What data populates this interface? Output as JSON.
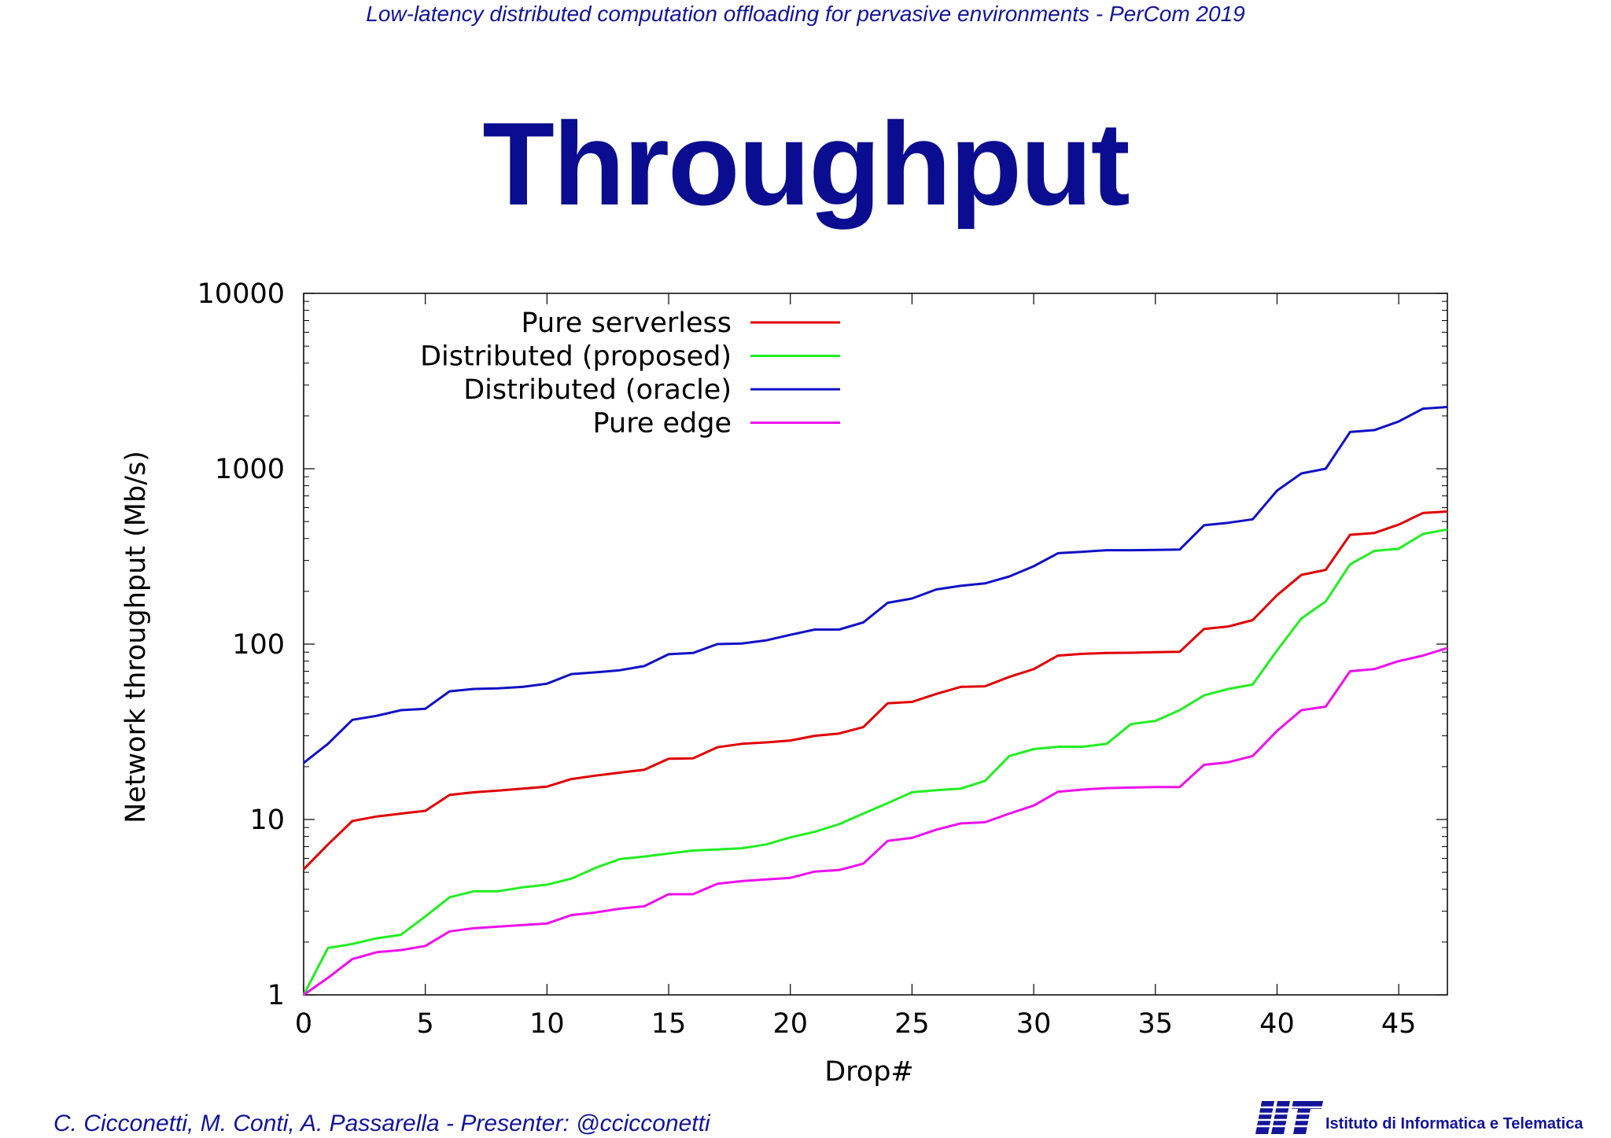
{
  "header": "Low-latency distributed computation offloading for pervasive environments  - PerCom 2019",
  "title": "Throughput",
  "footer": {
    "authors": "C. Cicconetti, M. Conti, A. Passarella - Presenter: @ccicconetti",
    "institute": "Istituto di Informatica e Telematica",
    "logo_letters": "IIT"
  },
  "colors": {
    "header_text": "#12149a",
    "title_text": "#0a0d8f",
    "pure_serverless": "#e00000",
    "distributed_proposed": "#22ee22",
    "distributed_oracle": "#1010c8",
    "pure_edge": "#ee10ee"
  },
  "chart_data": {
    "type": "line",
    "title": "",
    "xlabel": "Drop#",
    "ylabel": "Network throughput (Mb/s)",
    "yscale": "log",
    "xlim": [
      0,
      47
    ],
    "ylim": [
      1,
      10000
    ],
    "xticks": [
      0,
      5,
      10,
      15,
      20,
      25,
      30,
      35,
      40,
      45
    ],
    "yticks": [
      1,
      10,
      100,
      1000,
      10000
    ],
    "grid": false,
    "legend_position": "top-left",
    "x": [
      0,
      1,
      2,
      3,
      4,
      5,
      6,
      7,
      8,
      9,
      10,
      11,
      12,
      13,
      14,
      15,
      16,
      17,
      18,
      19,
      20,
      21,
      22,
      23,
      24,
      25,
      26,
      27,
      28,
      29,
      30,
      31,
      32,
      33,
      34,
      35,
      36,
      37,
      38,
      39,
      40,
      41,
      42,
      43,
      44,
      45,
      46,
      47
    ],
    "series": [
      {
        "name": "Pure serverless",
        "color": "#e00000",
        "values": [
          5.2,
          7.2,
          9.8,
          10.4,
          10.8,
          11.2,
          13.8,
          14.3,
          14.6,
          15,
          15.4,
          17,
          17.8,
          18.5,
          19.2,
          22.2,
          22.3,
          25.8,
          27,
          27.5,
          28.2,
          30,
          30.9,
          33.6,
          46,
          46.8,
          52,
          57,
          57.5,
          65,
          72,
          86,
          88,
          89,
          89.3,
          90,
          90.4,
          122,
          126,
          137,
          190,
          248,
          265,
          420,
          430,
          480,
          560,
          570
        ]
      },
      {
        "name": "Distributed (proposed)",
        "color": "#22ee22",
        "values": [
          1,
          1.85,
          1.95,
          2.1,
          2.2,
          2.8,
          3.6,
          3.9,
          3.9,
          4.1,
          4.25,
          4.6,
          5.3,
          5.95,
          6.15,
          6.4,
          6.65,
          6.75,
          6.85,
          7.2,
          7.9,
          8.5,
          9.4,
          10.8,
          12.4,
          14.3,
          14.7,
          15,
          16.6,
          23,
          25.2,
          26,
          26,
          27,
          35,
          36.5,
          42,
          51,
          55.5,
          58.8,
          92,
          140,
          175,
          285,
          340,
          350,
          425,
          450
        ]
      },
      {
        "name": "Distributed (oracle)",
        "color": "#1010c8",
        "values": [
          21,
          27,
          37,
          39,
          42,
          42.8,
          53.8,
          55.5,
          56,
          57,
          59.5,
          67.5,
          69,
          71,
          75,
          87.5,
          89,
          100,
          100.8,
          105,
          113,
          121,
          121,
          133,
          172,
          182,
          205,
          215,
          222,
          243,
          278,
          330,
          336,
          343,
          343,
          344,
          346,
          476,
          492,
          515,
          750,
          940,
          1000,
          1620,
          1660,
          1860,
          2200,
          2250
        ]
      },
      {
        "name": "Pure edge",
        "color": "#ee10ee",
        "values": [
          0.9,
          1.25,
          1.6,
          1.75,
          1.8,
          1.9,
          2.3,
          2.4,
          2.45,
          2.5,
          2.55,
          2.85,
          2.95,
          3.1,
          3.2,
          3.75,
          3.75,
          4.3,
          4.45,
          4.55,
          4.65,
          5.05,
          5.15,
          5.6,
          7.55,
          7.85,
          8.75,
          9.5,
          9.65,
          10.8,
          12,
          14.4,
          14.8,
          15.1,
          15.2,
          15.3,
          15.3,
          20.5,
          21.2,
          23,
          32,
          42,
          44,
          70,
          72,
          80,
          86,
          95
        ]
      }
    ]
  }
}
